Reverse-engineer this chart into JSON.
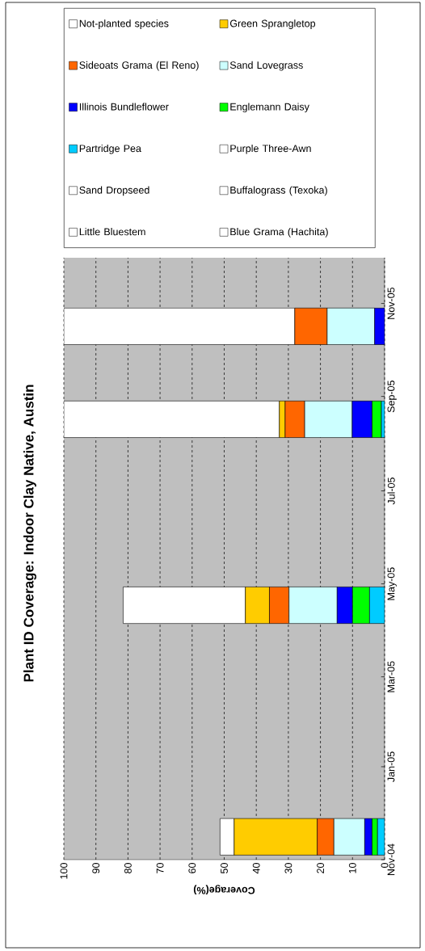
{
  "chart_data": {
    "type": "bar",
    "orientation": "horizontal",
    "title": "Plant ID Coverage: Indoor Clay Native, Austin",
    "xlabel": "Coverage(%)",
    "x": [
      "2004-11-16",
      "2005-04-17",
      "2005-08-17",
      "2005-10-17"
    ],
    "ylim": [
      "2004-11-01",
      "2005-12-01"
    ],
    "yticks": [
      {
        "value": "2004-11-01",
        "label": "Nov-04"
      },
      {
        "value": "2005-01-01",
        "label": "Jan-05"
      },
      {
        "value": "2005-03-01",
        "label": "Mar-05"
      },
      {
        "value": "2005-05-01",
        "label": "May-05"
      },
      {
        "value": "2005-07-01",
        "label": "Jul-05"
      },
      {
        "value": "2005-09-01",
        "label": "Sep-05"
      },
      {
        "value": "2005-11-01",
        "label": "Nov-05"
      }
    ],
    "xlim": [
      100,
      0
    ],
    "xticks": [
      100,
      90,
      80,
      70,
      60,
      50,
      40,
      30,
      20,
      10,
      0
    ],
    "stacked": true,
    "grid": "x",
    "legend": "top",
    "series": [
      {
        "name": "Blue Grama (Hachita)",
        "color": "#ffffff",
        "values": [
          null,
          null,
          null,
          null
        ]
      },
      {
        "name": "Little Bluestem",
        "color": "#ffffff",
        "values": [
          null,
          null,
          null,
          null
        ]
      },
      {
        "name": "Buffalograss (Texoka)",
        "color": "#ffffff",
        "values": [
          null,
          null,
          null,
          null
        ]
      },
      {
        "name": "Sand Dropseed",
        "color": "#ffffff",
        "values": [
          null,
          null,
          null,
          null
        ]
      },
      {
        "name": "Purple Three-Awn",
        "color": "#ffffff",
        "values": [
          null,
          null,
          null,
          null
        ]
      },
      {
        "name": "Partridge Pea",
        "color": "#00ccff",
        "values": [
          2.2,
          4.7,
          1.0,
          0
        ]
      },
      {
        "name": "Englemann Daisy",
        "color": "#00ff00",
        "values": [
          1.7,
          5.3,
          2.9,
          0
        ]
      },
      {
        "name": "Illinois Bundleflower",
        "color": "#0000ff",
        "values": [
          2.3,
          4.8,
          6.2,
          3.1
        ]
      },
      {
        "name": "Sand Lovegrass",
        "color": "#ccffff",
        "values": [
          9.6,
          15.0,
          14.8,
          14.8
        ]
      },
      {
        "name": "Sideoats Grama (El Reno)",
        "color": "#ff6600",
        "values": [
          5.2,
          6.1,
          6.1,
          10.1
        ]
      },
      {
        "name": "Green Sprangletop",
        "color": "#ffcc00",
        "values": [
          25.9,
          7.5,
          1.8,
          0
        ]
      },
      {
        "name": "Not-planted species",
        "color": "#ffffff",
        "values": [
          4.4,
          38.1,
          67.2,
          72.0
        ]
      }
    ]
  }
}
